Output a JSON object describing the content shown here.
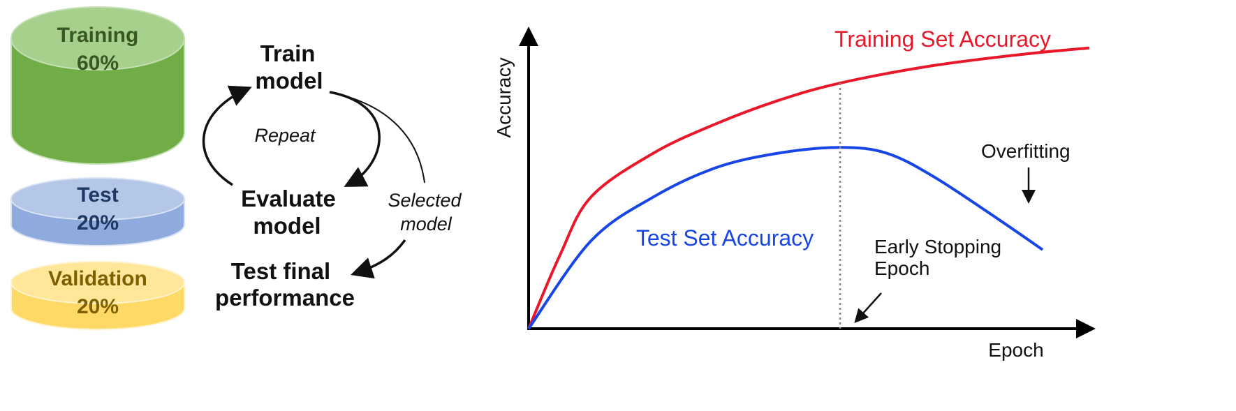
{
  "cylinders": [
    {
      "name": "Training",
      "percent": "60%",
      "top_color": "#a8d08d",
      "body_color": "#70ad47",
      "edge_color": "#c5e0b4",
      "text_color": "#385723"
    },
    {
      "name": "Test",
      "percent": "20%",
      "top_color": "#b4c7e7",
      "body_color": "#8faadc",
      "edge_color": "#dae3f3",
      "text_color": "#1f3864"
    },
    {
      "name": "Validation",
      "percent": "20%",
      "top_color": "#ffe699",
      "body_color": "#ffd966",
      "edge_color": "#fff2cc",
      "text_color": "#7f6000"
    }
  ],
  "workflow": {
    "train": [
      "Train",
      "model"
    ],
    "repeat": "Repeat",
    "evaluate": [
      "Evaluate",
      "model"
    ],
    "selected": [
      "Selected",
      "model"
    ],
    "test": [
      "Test final",
      "performance"
    ]
  },
  "chart_data": {
    "type": "line",
    "xlabel": "Epoch",
    "ylabel": "Accuracy",
    "series": [
      {
        "name": "Training Set Accuracy",
        "color": "#e8182a",
        "points": [
          [
            0,
            0
          ],
          [
            10,
            25
          ],
          [
            20,
            45
          ],
          [
            40,
            60
          ],
          [
            60,
            70
          ],
          [
            80,
            78
          ],
          [
            100,
            84
          ],
          [
            130,
            90
          ],
          [
            160,
            94
          ],
          [
            180,
            96
          ]
        ]
      },
      {
        "name": "Test Set Accuracy",
        "color": "#1846e6",
        "points": [
          [
            0,
            0
          ],
          [
            20,
            30
          ],
          [
            40,
            45
          ],
          [
            60,
            55
          ],
          [
            80,
            60
          ],
          [
            100,
            62
          ],
          [
            115,
            60
          ],
          [
            130,
            52
          ],
          [
            150,
            38
          ],
          [
            165,
            27
          ]
        ]
      }
    ],
    "annotations": {
      "early_stopping": {
        "text": [
          "Early Stopping",
          "Epoch"
        ],
        "x": 100
      },
      "overfitting": {
        "text": "Overfitting"
      }
    },
    "xlim": [
      0,
      180
    ],
    "ylim": [
      0,
      100
    ],
    "grid": false,
    "legend": "none"
  }
}
